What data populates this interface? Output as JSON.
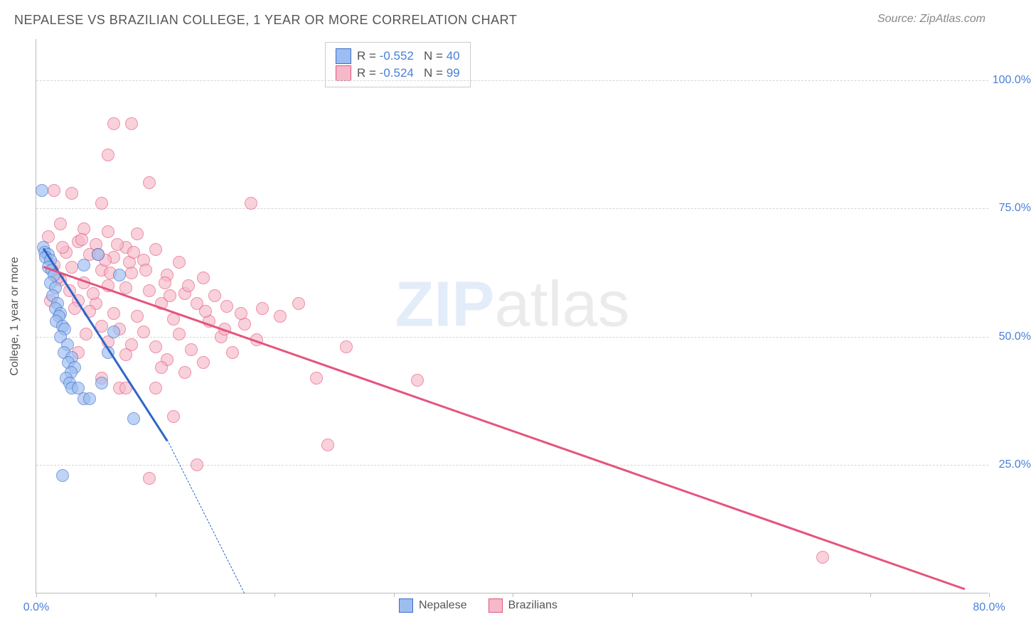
{
  "title": "NEPALESE VS BRAZILIAN COLLEGE, 1 YEAR OR MORE CORRELATION CHART",
  "source": "Source: ZipAtlas.com",
  "watermark1": "ZIP",
  "watermark2": "atlas",
  "chart": {
    "type": "scatter",
    "ylabel": "College, 1 year or more",
    "xlim": [
      0,
      80
    ],
    "ylim": [
      0,
      108
    ],
    "yticks": [
      25,
      50,
      75,
      100
    ],
    "ytick_labels": [
      "25.0%",
      "50.0%",
      "75.0%",
      "100.0%"
    ],
    "xticks": [
      0,
      10,
      20,
      30,
      40,
      50,
      60,
      70,
      80
    ],
    "xtick_labels_shown": {
      "0": "0.0%",
      "80": "80.0%"
    },
    "background_color": "#ffffff",
    "grid_color": "#d5d5d5",
    "axis_color": "#bbbbbb",
    "label_fontsize": 16,
    "tick_label_color": "#4a7fd8",
    "marker_radius": 9,
    "marker_opacity": 0.65,
    "series": [
      {
        "name": "Nepalese",
        "fill_color": "#9cbdf0",
        "stroke_color": "#3d6fc9",
        "r": -0.552,
        "n": 40,
        "trend": {
          "x1": 0.6,
          "y1": 67.5,
          "x2": 11.0,
          "y2": 30.0,
          "dash_ext": {
            "x2": 17.5,
            "y2": 0.0
          },
          "width": 3,
          "color": "#2f66c7"
        },
        "points": [
          [
            0.5,
            78.5
          ],
          [
            0.6,
            67.5
          ],
          [
            0.7,
            66.5
          ],
          [
            1.0,
            66.0
          ],
          [
            0.8,
            65.5
          ],
          [
            1.2,
            65.0
          ],
          [
            1.0,
            63.5
          ],
          [
            1.3,
            63.0
          ],
          [
            1.5,
            62.0
          ],
          [
            1.2,
            60.5
          ],
          [
            1.6,
            59.5
          ],
          [
            1.4,
            58.0
          ],
          [
            1.8,
            56.5
          ],
          [
            1.6,
            55.5
          ],
          [
            2.0,
            54.5
          ],
          [
            1.9,
            54.0
          ],
          [
            1.7,
            53.0
          ],
          [
            2.2,
            52.0
          ],
          [
            2.4,
            51.5
          ],
          [
            2.0,
            50.0
          ],
          [
            2.6,
            48.5
          ],
          [
            2.3,
            47.0
          ],
          [
            3.0,
            46.0
          ],
          [
            2.7,
            45.0
          ],
          [
            3.2,
            44.0
          ],
          [
            2.9,
            43.0
          ],
          [
            2.5,
            42.0
          ],
          [
            2.8,
            41.0
          ],
          [
            3.0,
            40.0
          ],
          [
            3.5,
            40.0
          ],
          [
            4.0,
            38.0
          ],
          [
            4.5,
            38.0
          ],
          [
            8.2,
            34.0
          ],
          [
            2.2,
            23.0
          ],
          [
            5.5,
            41.0
          ],
          [
            6.0,
            47.0
          ],
          [
            6.5,
            51.0
          ],
          [
            7.0,
            62.0
          ],
          [
            5.2,
            66.0
          ],
          [
            4.0,
            64.0
          ]
        ]
      },
      {
        "name": "Brazilians",
        "fill_color": "#f5b9c9",
        "stroke_color": "#e5547d",
        "r": -0.524,
        "n": 99,
        "trend": {
          "x1": 0.6,
          "y1": 63.8,
          "x2": 78.0,
          "y2": 1.0,
          "width": 3,
          "color": "#e5547d"
        },
        "points": [
          [
            6.5,
            91.5
          ],
          [
            8.0,
            91.5
          ],
          [
            6.0,
            85.5
          ],
          [
            9.5,
            80.0
          ],
          [
            1.5,
            78.5
          ],
          [
            3.0,
            78.0
          ],
          [
            5.5,
            76.0
          ],
          [
            18.0,
            76.0
          ],
          [
            2.0,
            72.0
          ],
          [
            4.0,
            71.0
          ],
          [
            6.0,
            70.5
          ],
          [
            8.5,
            70.0
          ],
          [
            1.0,
            69.5
          ],
          [
            3.5,
            68.5
          ],
          [
            5.0,
            68.0
          ],
          [
            7.5,
            67.5
          ],
          [
            10.0,
            67.0
          ],
          [
            2.5,
            66.5
          ],
          [
            4.5,
            66.0
          ],
          [
            6.5,
            65.5
          ],
          [
            9.0,
            65.0
          ],
          [
            12.0,
            64.5
          ],
          [
            1.5,
            64.0
          ],
          [
            3.0,
            63.5
          ],
          [
            5.5,
            63.0
          ],
          [
            8.0,
            62.5
          ],
          [
            11.0,
            62.0
          ],
          [
            14.0,
            61.5
          ],
          [
            2.0,
            61.0
          ],
          [
            4.0,
            60.5
          ],
          [
            6.0,
            60.0
          ],
          [
            7.5,
            59.5
          ],
          [
            9.5,
            59.0
          ],
          [
            12.5,
            58.5
          ],
          [
            15.0,
            58.0
          ],
          [
            3.5,
            57.0
          ],
          [
            5.0,
            56.5
          ],
          [
            10.5,
            56.5
          ],
          [
            13.5,
            56.5
          ],
          [
            16.0,
            56.0
          ],
          [
            19.0,
            55.5
          ],
          [
            4.5,
            55.0
          ],
          [
            6.5,
            54.5
          ],
          [
            8.5,
            54.0
          ],
          [
            11.5,
            53.5
          ],
          [
            14.5,
            53.0
          ],
          [
            17.5,
            52.5
          ],
          [
            5.5,
            52.0
          ],
          [
            7.0,
            51.5
          ],
          [
            9.0,
            51.0
          ],
          [
            12.0,
            50.5
          ],
          [
            15.5,
            50.0
          ],
          [
            18.5,
            49.5
          ],
          [
            6.0,
            49.0
          ],
          [
            8.0,
            48.5
          ],
          [
            10.0,
            48.0
          ],
          [
            13.0,
            47.5
          ],
          [
            16.5,
            47.0
          ],
          [
            7.5,
            46.5
          ],
          [
            11.0,
            45.5
          ],
          [
            14.0,
            45.0
          ],
          [
            7.0,
            40.0
          ],
          [
            10.5,
            44.0
          ],
          [
            12.5,
            43.0
          ],
          [
            5.5,
            42.0
          ],
          [
            7.5,
            40.0
          ],
          [
            10.0,
            40.0
          ],
          [
            23.5,
            42.0
          ],
          [
            32.0,
            41.5
          ],
          [
            11.5,
            34.5
          ],
          [
            9.5,
            22.5
          ],
          [
            13.5,
            25.0
          ],
          [
            24.5,
            29.0
          ],
          [
            66.0,
            7.0
          ],
          [
            20.5,
            54.0
          ],
          [
            22.0,
            56.5
          ],
          [
            3.5,
            47.0
          ],
          [
            4.2,
            50.5
          ],
          [
            5.8,
            65.0
          ],
          [
            2.8,
            59.0
          ],
          [
            1.2,
            57.0
          ],
          [
            1.8,
            61.5
          ],
          [
            3.2,
            55.5
          ],
          [
            4.8,
            58.5
          ],
          [
            6.2,
            62.5
          ],
          [
            7.8,
            64.5
          ],
          [
            9.2,
            63.0
          ],
          [
            10.8,
            60.5
          ],
          [
            2.2,
            67.5
          ],
          [
            3.8,
            69.0
          ],
          [
            5.2,
            66.0
          ],
          [
            6.8,
            68.0
          ],
          [
            8.2,
            66.5
          ],
          [
            11.2,
            58.0
          ],
          [
            12.8,
            60.0
          ],
          [
            14.2,
            55.0
          ],
          [
            15.8,
            51.5
          ],
          [
            17.2,
            54.5
          ],
          [
            26.0,
            48.0
          ]
        ]
      }
    ]
  }
}
